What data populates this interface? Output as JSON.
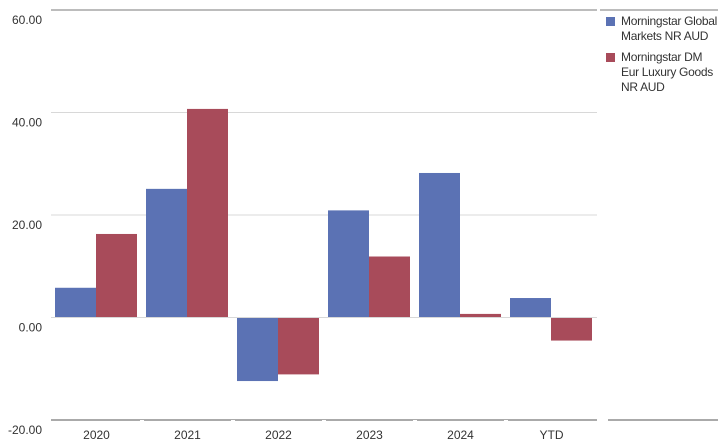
{
  "chart_data": {
    "type": "bar",
    "categories": [
      "2020",
      "2021",
      "2022",
      "2023",
      "2024",
      "YTD"
    ],
    "series": [
      {
        "name": "Morningstar Global Markets NR AUD",
        "color": "#5b72b4",
        "values": [
          5.8,
          25.1,
          -12.4,
          20.9,
          28.2,
          3.8
        ]
      },
      {
        "name": "Morningstar DM Eur Luxury Goods NR AUD",
        "color": "#a84b5a",
        "values": [
          16.3,
          40.7,
          -11.1,
          11.9,
          0.7,
          -4.5
        ]
      }
    ],
    "y_ticks": [
      "60.00",
      "40.00",
      "20.00",
      "0.00",
      "-20.00"
    ],
    "ylim": [
      -20,
      60
    ],
    "grid": true,
    "legend_position": "top-right",
    "xlabel": "",
    "ylabel": ""
  }
}
